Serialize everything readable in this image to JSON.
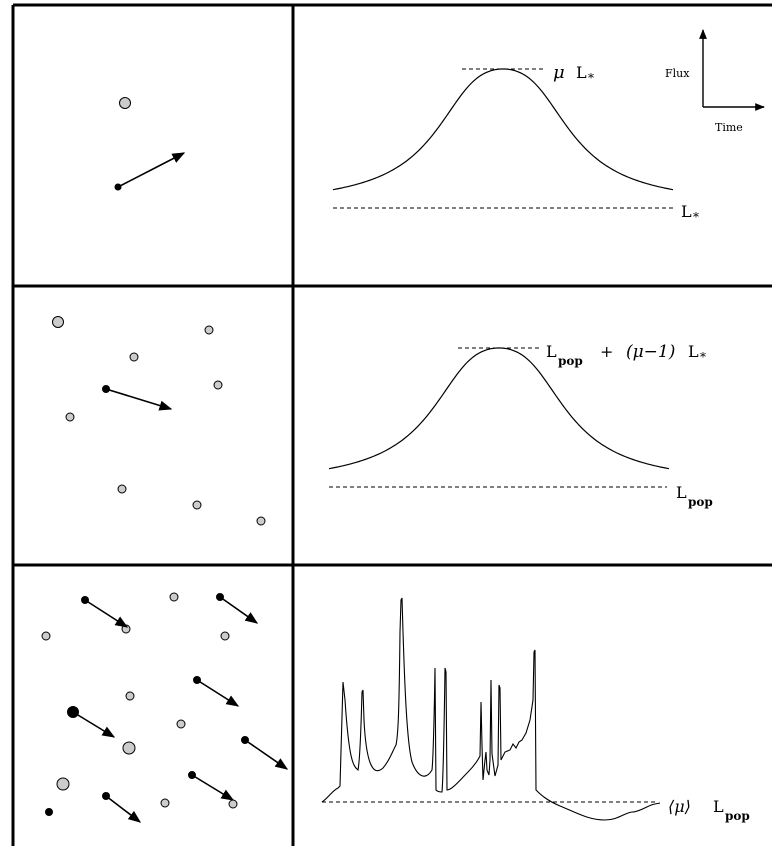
{
  "panel1": {
    "peak_label_mu": "μ",
    "peak_label_L": "L",
    "peak_label_sub": "*",
    "base_label_L": "L",
    "base_label_sub": "*",
    "axis_y_label": "Flux",
    "axis_x_label": "Time"
  },
  "panel2": {
    "peak_label_L": "L",
    "peak_label_sub": "pop",
    "peak_label_plus": "+",
    "peak_label_mu": "(μ−1)",
    "peak_label_L2": "L",
    "peak_label_sub2": "*",
    "base_label_L": "L",
    "base_label_sub": "pop"
  },
  "panel3": {
    "base_label_mu": "⟨μ⟩",
    "base_label_L": "L",
    "base_label_sub": "pop"
  }
}
